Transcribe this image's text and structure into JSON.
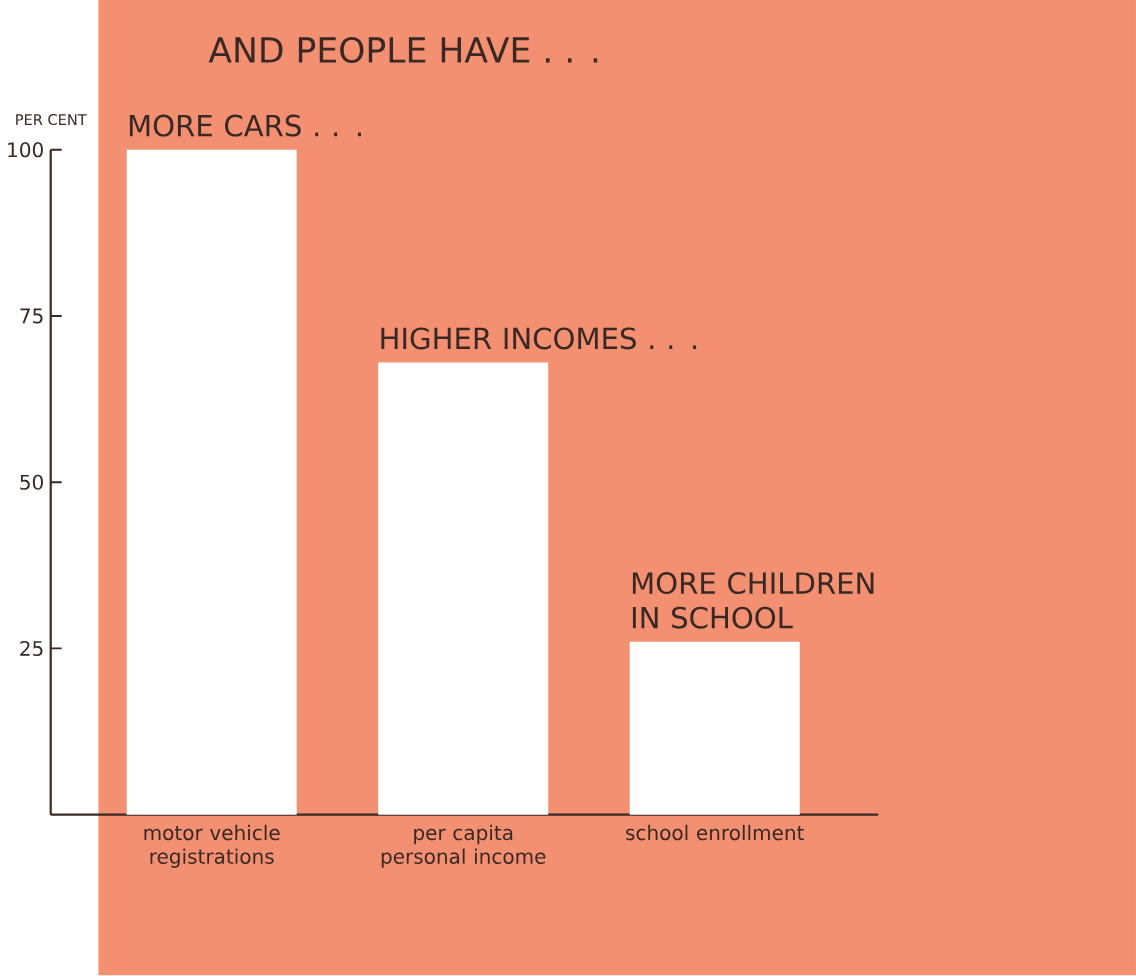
{
  "chart_data": {
    "type": "bar",
    "title": "AND PEOPLE HAVE . . .",
    "ylabel": "PER CENT",
    "categories": [
      "motor vehicle registrations",
      "per capita personal income",
      "school enrollment"
    ],
    "values": [
      100,
      68,
      26
    ],
    "color": "#ffffff",
    "ylim": [
      0,
      100
    ],
    "yticks": [
      25,
      50,
      75,
      100
    ],
    "annotations": [
      {
        "text": "MORE CARS . . .",
        "x": "motor vehicle registrations",
        "y": 100
      },
      {
        "text": "HIGHER INCOMES . . .",
        "x": "per capita personal income",
        "y": 68
      },
      {
        "text": "MORE CHILDREN IN SCHOOL",
        "x": "school enrollment",
        "y": 26
      }
    ]
  }
}
